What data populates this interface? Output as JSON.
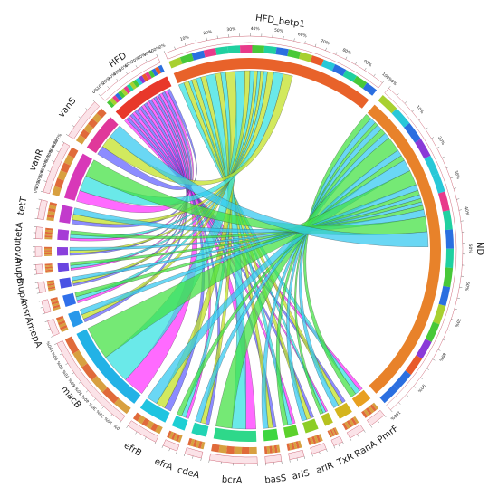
{
  "chart_data": {
    "type": "chord",
    "groups": [
      {
        "label": "HFD",
        "color": "#e8382a",
        "size": 1300
      },
      {
        "label": "HFD_betp1",
        "color": "#e8622a",
        "size": 4300
      },
      {
        "label": "ND",
        "color": "#e8822a",
        "size": 6800
      },
      {
        "label": "PmrF",
        "color": "#e8a020",
        "size": 320
      },
      {
        "label": "RanA",
        "color": "#d4b51e",
        "size": 300
      },
      {
        "label": "TxR",
        "color": "#b6c220",
        "size": 180
      },
      {
        "label": "arlR",
        "color": "#8ccd26",
        "size": 280
      },
      {
        "label": "arlS",
        "color": "#5cd12c",
        "size": 280
      },
      {
        "label": "basS",
        "color": "#3dd640",
        "size": 300
      },
      {
        "label": "bcrA",
        "color": "#2ed88a",
        "size": 900
      },
      {
        "label": "cdeA",
        "color": "#22d4b4",
        "size": 320
      },
      {
        "label": "efrA",
        "color": "#1ecfd4",
        "size": 280
      },
      {
        "label": "efrB",
        "color": "#1fc4e0",
        "size": 600
      },
      {
        "label": "macB",
        "color": "#22b2e6",
        "size": 1900
      },
      {
        "label": "mepA",
        "color": "#2898ea",
        "size": 300
      },
      {
        "label": "msrA",
        "color": "#3070ea",
        "size": 240
      },
      {
        "label": "mupA",
        "color": "#4a52e4",
        "size": 200
      },
      {
        "label": "mupB",
        "color": "#6a46e0",
        "size": 180
      },
      {
        "label": "novA",
        "color": "#8a40dc",
        "size": 180
      },
      {
        "label": "tetA",
        "color": "#a63cd6",
        "size": 220
      },
      {
        "label": "tetT",
        "color": "#c23acc",
        "size": 360
      },
      {
        "label": "vanR",
        "color": "#d838b8",
        "size": 1000
      },
      {
        "label": "vanS",
        "color": "#e0389a",
        "size": 800
      }
    ],
    "tick_percent_labels": [
      "0%",
      "10%",
      "20%",
      "30%",
      "40%",
      "50%",
      "60%",
      "70%",
      "80%",
      "90%",
      "100%"
    ]
  }
}
